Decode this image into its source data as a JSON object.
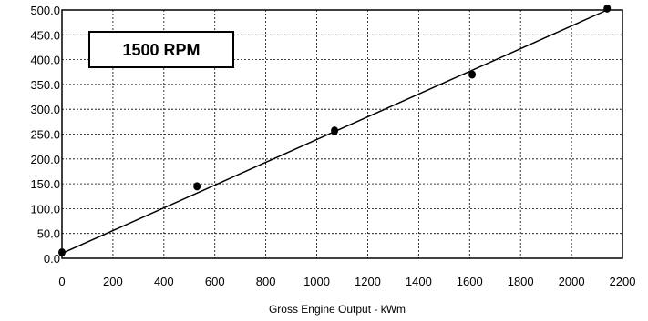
{
  "chart_data": {
    "type": "scatter",
    "xlabel": "Gross Engine Output - kWm",
    "ylabel": "",
    "annotation": "1500 RPM",
    "xlim": [
      0,
      2200
    ],
    "ylim": [
      0,
      500
    ],
    "x_ticks": [
      0,
      200,
      400,
      600,
      800,
      1000,
      1200,
      1400,
      1600,
      1800,
      2000,
      2200
    ],
    "y_ticks": [
      "0.0",
      "50.0",
      "100.0",
      "150.0",
      "200.0",
      "250.0",
      "300.0",
      "350.0",
      "400.0",
      "450.0",
      "500.0"
    ],
    "grid": true,
    "legend": "none",
    "series": [
      {
        "x": [
          0,
          530,
          1070,
          1610,
          2140
        ],
        "y": [
          12,
          145,
          257,
          370,
          503
        ]
      }
    ],
    "trendline": {
      "x": [
        0,
        2140
      ],
      "y": [
        10,
        500
      ]
    }
  }
}
